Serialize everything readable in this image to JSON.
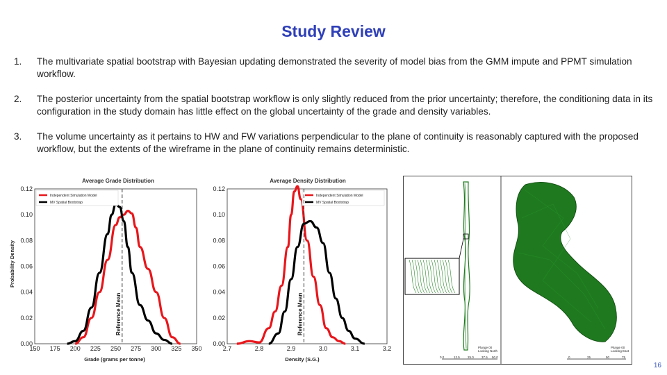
{
  "slide": {
    "title": "Study Review",
    "page_number": "16"
  },
  "items": [
    {
      "num": "1.",
      "text": "The multivariate spatial bootstrap with Bayesian updating demonstrated the severity of model bias from the GMM impute and PPMT simulation workflow."
    },
    {
      "num": "2.",
      "text": "The posterior uncertainty from the spatial bootstrap workflow is only slightly reduced from the prior uncertainty; therefore, the conditioning data in its configuration in the study domain has little effect on the global uncertainty of the grade and density variables."
    },
    {
      "num": "3.",
      "text": "The volume uncertainty as it pertains to HW and FW variations perpendicular to the plane of continuity is reasonably captured with the proposed workflow, but the extents of the wireframe in the plane of continuity remains deterministic."
    }
  ],
  "colors": {
    "title": "#2e3fb8",
    "red_series": "#e8161b",
    "black_series": "#000000",
    "page_number": "#3a56c6",
    "wireframe": "#1f7a1f"
  },
  "chart_data": [
    {
      "type": "line",
      "title": "Average Grade Distribution",
      "xlabel": "Grade (grams per tonne)",
      "ylabel": "Probability Density",
      "xlim": [
        150,
        350
      ],
      "ylim": [
        0,
        0.12
      ],
      "xticks": [
        "150",
        "175",
        "200",
        "225",
        "250",
        "275",
        "300",
        "325",
        "350"
      ],
      "yticks": [
        "0.00",
        "0.02",
        "0.04",
        "0.06",
        "0.08",
        "0.10",
        "0.12"
      ],
      "ref_mean_label": "Reference Mean",
      "ref_mean_x": 258,
      "series": [
        {
          "name": "Independent Simulation Model",
          "color": "#e8161b",
          "x": [
            200,
            210,
            220,
            230,
            240,
            250,
            255,
            260,
            265,
            270,
            275,
            280,
            290,
            300,
            310,
            320,
            330
          ],
          "y": [
            0.0,
            0.005,
            0.02,
            0.04,
            0.065,
            0.092,
            0.098,
            0.1,
            0.103,
            0.101,
            0.09,
            0.075,
            0.058,
            0.04,
            0.02,
            0.005,
            0.0
          ]
        },
        {
          "name": "MV Spatial Bootstrap",
          "color": "#000000",
          "x": [
            190,
            200,
            210,
            220,
            230,
            240,
            245,
            250,
            255,
            260,
            265,
            270,
            280,
            290,
            300,
            310,
            320
          ],
          "y": [
            0.0,
            0.002,
            0.01,
            0.028,
            0.055,
            0.085,
            0.1,
            0.108,
            0.106,
            0.095,
            0.075,
            0.055,
            0.03,
            0.018,
            0.008,
            0.003,
            0.0
          ]
        }
      ],
      "legend": "top-left"
    },
    {
      "type": "line",
      "title": "Average Density Distribution",
      "xlabel": "Density (S.G.)",
      "ylabel": "",
      "xlim": [
        2.7,
        3.2
      ],
      "ylim": [
        0,
        0.12
      ],
      "xticks": [
        "2.7",
        "2.8",
        "2.9",
        "3.0",
        "3.1",
        "3.2"
      ],
      "yticks": [
        "0.00",
        "0.02",
        "0.04",
        "0.06",
        "0.08",
        "0.10",
        "0.12"
      ],
      "ref_mean_label": "Reference Mean",
      "ref_mean_x": 2.94,
      "series": [
        {
          "name": "Independent Simulation Model",
          "color": "#e8161b",
          "x": [
            2.73,
            2.77,
            2.8,
            2.83,
            2.85,
            2.87,
            2.89,
            2.9,
            2.91,
            2.92,
            2.93,
            2.95,
            2.97,
            2.99,
            3.01,
            3.03,
            3.05,
            3.07
          ],
          "y": [
            0.0,
            0.002,
            0.001,
            0.012,
            0.025,
            0.045,
            0.075,
            0.1,
            0.118,
            0.122,
            0.112,
            0.08,
            0.052,
            0.03,
            0.012,
            0.005,
            0.002,
            0.0
          ]
        },
        {
          "name": "MV Spatial Bootstrap",
          "color": "#000000",
          "x": [
            2.83,
            2.86,
            2.88,
            2.9,
            2.92,
            2.94,
            2.96,
            2.98,
            3.0,
            3.02,
            3.04,
            3.06,
            3.08,
            3.1,
            3.13
          ],
          "y": [
            0.0,
            0.008,
            0.025,
            0.05,
            0.075,
            0.093,
            0.095,
            0.09,
            0.078,
            0.055,
            0.035,
            0.02,
            0.01,
            0.004,
            0.0
          ]
        }
      ],
      "legend": "top-right"
    }
  ],
  "map_panel": {
    "left_label_lines": [
      "Plunge 00",
      "Looking North"
    ],
    "left_scale_ticks": [
      "0.0",
      "12.5",
      "25.0",
      "37.5",
      "50.0"
    ],
    "right_label_lines": [
      "Plunge 00",
      "Looking East"
    ],
    "right_scale_ticks": [
      "0",
      "25",
      "50",
      "75"
    ]
  }
}
